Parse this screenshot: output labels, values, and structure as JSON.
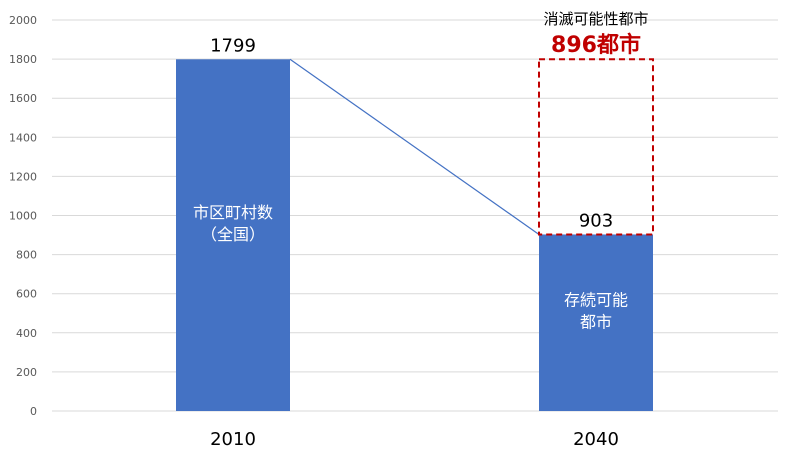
{
  "chart_data": {
    "type": "bar",
    "categories": [
      "2010",
      "2040"
    ],
    "values": [
      1799,
      903
    ],
    "value_labels": [
      "1799",
      "903"
    ],
    "bar_labels": [
      [
        "市区町村数",
        "（全国）"
      ],
      [
        "存続可能",
        "都市"
      ]
    ],
    "ylim": [
      0,
      2000
    ],
    "yticks": [
      0,
      200,
      400,
      600,
      800,
      1000,
      1200,
      1400,
      1600,
      1800,
      2000
    ],
    "grid": true,
    "connector_line": true,
    "stacked_gap": {
      "category": "2040",
      "from": 903,
      "to": 1799,
      "value": 896,
      "style": "dashed-outline",
      "caption": "消滅可能性都市",
      "label": "896都市"
    },
    "colors": {
      "bar": "#4472C4",
      "line": "#4472C4",
      "gap_outline": "#C00000",
      "gap_label": "#C00000",
      "grid": "#D9D9D9",
      "axis_text": "#595959",
      "text": "#000000",
      "bar_text": "#ffffff"
    }
  }
}
